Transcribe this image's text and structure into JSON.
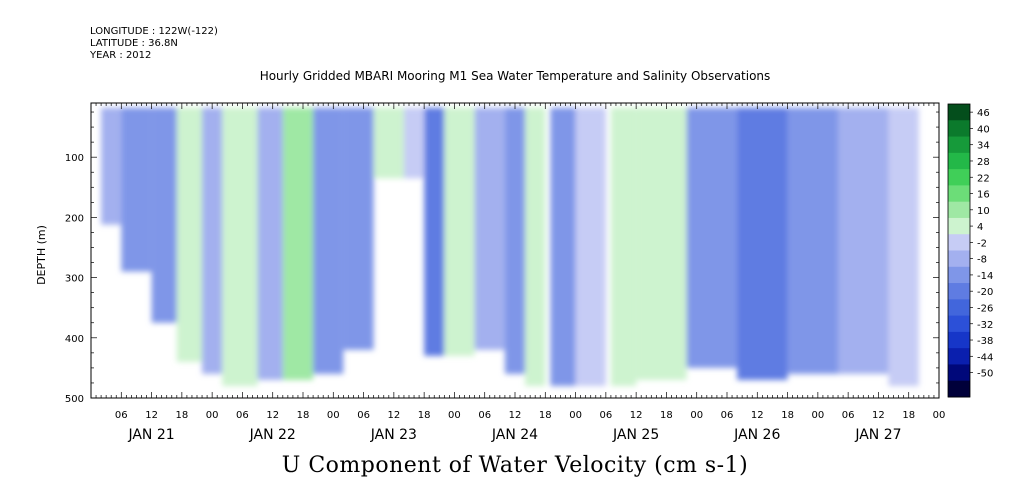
{
  "meta": {
    "longitude": "LONGITUDE : 122W(-122)",
    "latitude": "LATITUDE : 36.8N",
    "year": "YEAR : 2012"
  },
  "chart_data": {
    "type": "heatmap",
    "title": "Hourly Gridded MBARI Mooring M1 Sea Water Temperature and Salinity Observations",
    "xlabel": "U Component of Water Velocity (cm s-1)",
    "ylabel": "DEPTH (m)",
    "x_hour_ticks": [
      "06",
      "12",
      "18",
      "00",
      "06",
      "12",
      "18",
      "00",
      "06",
      "12",
      "18",
      "00",
      "06",
      "12",
      "18",
      "00",
      "06",
      "12",
      "18",
      "00",
      "06",
      "12",
      "18",
      "00",
      "06",
      "12",
      "18",
      "00"
    ],
    "x_day_labels": [
      "JAN 21",
      "JAN 22",
      "JAN 23",
      "JAN 24",
      "JAN 25",
      "JAN 26",
      "JAN 27"
    ],
    "y_ticks": [
      100,
      200,
      300,
      400,
      500
    ],
    "ylim": [
      500,
      10
    ],
    "xlim_hours": [
      0,
      168
    ],
    "y_reversed": true,
    "colorbar": {
      "levels": [
        -50,
        -44,
        -38,
        -32,
        -26,
        -20,
        -14,
        -8,
        -2,
        4,
        10,
        16,
        22,
        28,
        34,
        40,
        46
      ],
      "label_values": [
        "46",
        "40",
        "34",
        "28",
        "22",
        "16",
        "10",
        "4",
        "-2",
        "-8",
        "-14",
        "-20",
        "-26",
        "-32",
        "-38",
        "-44",
        "-50"
      ],
      "colors": [
        "#00003a",
        "#00087a",
        "#0a1fae",
        "#1636c8",
        "#2c50d8",
        "#4266dc",
        "#5f7ce2",
        "#7f96e8",
        "#a3b0ef",
        "#c6ccf5",
        "#cdf3cf",
        "#9fe8a4",
        "#6cdd78",
        "#40cf58",
        "#23b848",
        "#169a3a",
        "#0b7a2c",
        "#044e1c"
      ]
    },
    "data_regions": [
      {
        "t_start": 2,
        "t_end": 6,
        "depth_top": 18,
        "depth_bottom": 212,
        "u": -6
      },
      {
        "t_start": 6,
        "t_end": 12,
        "depth_top": 18,
        "depth_bottom": 290,
        "u": -10
      },
      {
        "t_start": 12,
        "t_end": 17,
        "depth_top": 18,
        "depth_bottom": 375,
        "u": -12
      },
      {
        "t_start": 17,
        "t_end": 22,
        "depth_top": 18,
        "depth_bottom": 440,
        "u": 6
      },
      {
        "t_start": 22,
        "t_end": 26,
        "depth_top": 18,
        "depth_bottom": 460,
        "u": -4
      },
      {
        "t_start": 26,
        "t_end": 33,
        "depth_top": 18,
        "depth_bottom": 480,
        "u": 10
      },
      {
        "t_start": 33,
        "t_end": 38,
        "depth_top": 18,
        "depth_bottom": 470,
        "u": -6
      },
      {
        "t_start": 38,
        "t_end": 44,
        "depth_top": 18,
        "depth_bottom": 470,
        "u": 14
      },
      {
        "t_start": 44,
        "t_end": 50,
        "depth_top": 18,
        "depth_bottom": 460,
        "u": -8
      },
      {
        "t_start": 50,
        "t_end": 56,
        "depth_top": 18,
        "depth_bottom": 420,
        "u": -12
      },
      {
        "t_start": 56,
        "t_end": 62,
        "depth_top": 18,
        "depth_bottom": 135,
        "u": 8
      },
      {
        "t_start": 62,
        "t_end": 66,
        "depth_top": 18,
        "depth_bottom": 135,
        "u": 4
      },
      {
        "t_start": 66,
        "t_end": 70,
        "depth_top": 18,
        "depth_bottom": 430,
        "u": -14
      },
      {
        "t_start": 70,
        "t_end": 76,
        "depth_top": 18,
        "depth_bottom": 430,
        "u": 8
      },
      {
        "t_start": 76,
        "t_end": 82,
        "depth_top": 18,
        "depth_bottom": 420,
        "u": -6
      },
      {
        "t_start": 82,
        "t_end": 86,
        "depth_top": 18,
        "depth_bottom": 460,
        "u": -10
      },
      {
        "t_start": 86,
        "t_end": 90,
        "depth_top": 18,
        "depth_bottom": 480,
        "u": 6
      },
      {
        "t_start": 91,
        "t_end": 96,
        "depth_top": 18,
        "depth_bottom": 480,
        "u": -8
      },
      {
        "t_start": 96,
        "t_end": 102,
        "depth_top": 18,
        "depth_bottom": 480,
        "u": 4
      },
      {
        "t_start": 103,
        "t_end": 108,
        "depth_top": 18,
        "depth_bottom": 480,
        "u": 10
      },
      {
        "t_start": 108,
        "t_end": 118,
        "depth_top": 18,
        "depth_bottom": 470,
        "u": 8
      },
      {
        "t_start": 118,
        "t_end": 128,
        "depth_top": 18,
        "depth_bottom": 450,
        "u": -8
      },
      {
        "t_start": 128,
        "t_end": 138,
        "depth_top": 18,
        "depth_bottom": 470,
        "u": -14
      },
      {
        "t_start": 138,
        "t_end": 148,
        "depth_top": 18,
        "depth_bottom": 460,
        "u": -10
      },
      {
        "t_start": 148,
        "t_end": 158,
        "depth_top": 18,
        "depth_bottom": 460,
        "u": -6
      },
      {
        "t_start": 158,
        "t_end": 164,
        "depth_top": 18,
        "depth_bottom": 480,
        "u": 4
      }
    ]
  }
}
